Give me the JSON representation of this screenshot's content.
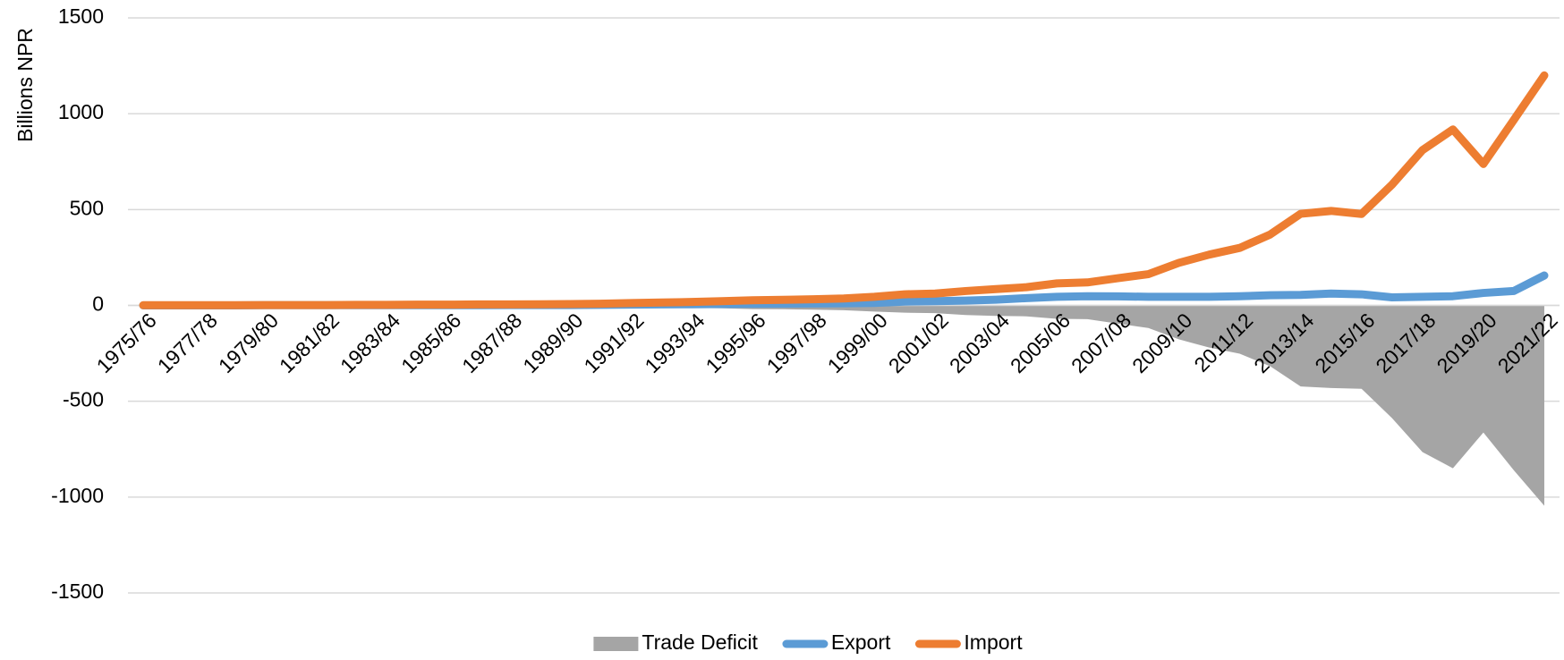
{
  "chart_data": {
    "type": "line",
    "y_label": "Billions NPR",
    "categories": [
      "1975/76",
      null,
      "1977/78",
      null,
      "1979/80",
      null,
      "1981/82",
      null,
      "1983/84",
      null,
      "1985/86",
      null,
      "1987/88",
      null,
      "1989/90",
      null,
      "1991/92",
      null,
      "1993/94",
      null,
      "1995/96",
      null,
      "1997/98",
      null,
      "1999/00",
      null,
      "2001/02",
      null,
      "2003/04",
      null,
      "2005/06",
      null,
      "2007/08",
      null,
      "2009/10",
      null,
      "2011/12",
      null,
      "2013/14",
      null,
      "2015/16",
      null,
      "2017/18",
      null,
      "2019/20",
      null,
      "2021/22"
    ],
    "series": [
      {
        "name": "Trade Deficit",
        "kind": "area",
        "color": "#a5a5a5",
        "values": [
          -1,
          -1,
          -1,
          -1,
          -1,
          -1,
          -1,
          -2,
          -2,
          -3,
          -3,
          -4,
          -3,
          -4,
          -5,
          -6,
          -8,
          -10,
          -12,
          -15,
          -19,
          -20,
          -22,
          -25,
          -32,
          -38,
          -40,
          -50,
          -55,
          -57,
          -70,
          -72,
          -95,
          -118,
          -177,
          -220,
          -252,
          -317,
          -423,
          -431,
          -435,
          -588,
          -765,
          -850,
          -663,
          -860,
          -1045
        ]
      },
      {
        "name": "Export",
        "kind": "line",
        "color": "#5b9bd5",
        "values": [
          0,
          0,
          0,
          0,
          1,
          1,
          1,
          1,
          1,
          1,
          1,
          1,
          2,
          2,
          2,
          3,
          4,
          5,
          6,
          7,
          8,
          9,
          10,
          11,
          13,
          20,
          22,
          25,
          30,
          38,
          45,
          48,
          47,
          45,
          45,
          45,
          48,
          53,
          55,
          62,
          58,
          42,
          45,
          48,
          65,
          75,
          156
        ]
      },
      {
        "name": "Import",
        "kind": "line",
        "color": "#ed7d31",
        "values": [
          1,
          1,
          1,
          1,
          2,
          2,
          2,
          3,
          3,
          4,
          4,
          5,
          5,
          6,
          7,
          9,
          12,
          15,
          18,
          22,
          27,
          29,
          32,
          36,
          45,
          58,
          62,
          75,
          85,
          95,
          115,
          120,
          142,
          163,
          222,
          265,
          300,
          370,
          478,
          493,
          477,
          630,
          810,
          918,
          738,
          968,
          1200
        ]
      }
    ],
    "ylim": [
      -1500,
      1500
    ],
    "yticks": [
      -1500,
      -1000,
      -500,
      0,
      500,
      1000,
      1500
    ],
    "grid": true,
    "legend": "bottom"
  }
}
